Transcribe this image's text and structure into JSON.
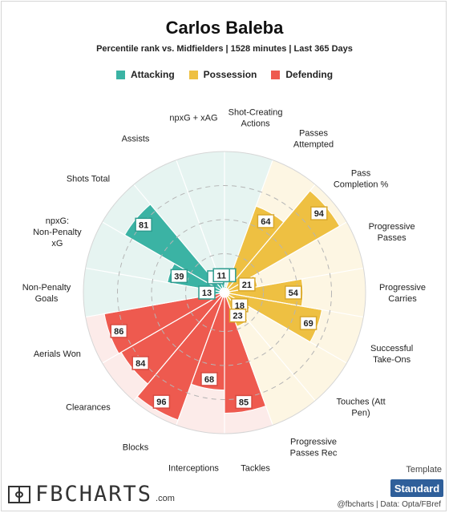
{
  "header": {
    "title": "Carlos Baleba",
    "subtitle": "Percentile rank vs. Midfielders | 1528 minutes | Last 365 Days"
  },
  "legend": [
    {
      "label": "Attacking",
      "color": "#3bb3a4"
    },
    {
      "label": "Possession",
      "color": "#eec042"
    },
    {
      "label": "Defending",
      "color": "#ee5a4f"
    }
  ],
  "chart_data": {
    "type": "polar-bar",
    "scale": [
      0,
      100
    ],
    "groups": {
      "Attacking": {
        "bar": "#3bb3a4",
        "bg": "#e6f4f1",
        "box": "#2e9c8f"
      },
      "Possession": {
        "bar": "#eec042",
        "bg": "#fdf6e3",
        "box": "#d9a82c"
      },
      "Defending": {
        "bar": "#ee5a4f",
        "bg": "#fcebe9",
        "box": "#d84a40"
      }
    },
    "stats": [
      {
        "label": "Shot-Creating Actions",
        "value": 1,
        "group": "Attacking"
      },
      {
        "label": "Passes Attempted",
        "value": 64,
        "group": "Possession"
      },
      {
        "label": "Pass Completion %",
        "value": 94,
        "group": "Possession"
      },
      {
        "label": "Progressive Passes",
        "value": 21,
        "group": "Possession"
      },
      {
        "label": "Progressive Carries",
        "value": 54,
        "group": "Possession"
      },
      {
        "label": "Successful Take-Ons",
        "value": 69,
        "group": "Possession"
      },
      {
        "label": "Touches (Att Pen)",
        "value": 18,
        "group": "Possession"
      },
      {
        "label": "Progressive Passes Rec",
        "value": 23,
        "group": "Possession"
      },
      {
        "label": "Tackles",
        "value": 85,
        "group": "Defending"
      },
      {
        "label": "Interceptions",
        "value": 68,
        "group": "Defending"
      },
      {
        "label": "Blocks",
        "value": 96,
        "group": "Defending"
      },
      {
        "label": "Clearances",
        "value": 84,
        "group": "Defending"
      },
      {
        "label": "Aerials Won",
        "value": 86,
        "group": "Defending"
      },
      {
        "label": "Non-Penalty Goals",
        "value": 13,
        "group": "Attacking"
      },
      {
        "label": "npxG: Non-Penalty xG",
        "value": 39,
        "group": "Attacking"
      },
      {
        "label": "Shots Total",
        "value": 81,
        "group": "Attacking"
      },
      {
        "label": "Assists",
        "value": 9,
        "group": "Attacking"
      },
      {
        "label": "npxG + xAG",
        "value": 11,
        "group": "Attacking"
      }
    ]
  },
  "footer": {
    "logo_text": "FBCHARTS",
    "logo_suffix": ".com",
    "template_label": "Template",
    "template_value": "Standard",
    "credit": "@fbcharts | Data: Opta/FBref"
  }
}
